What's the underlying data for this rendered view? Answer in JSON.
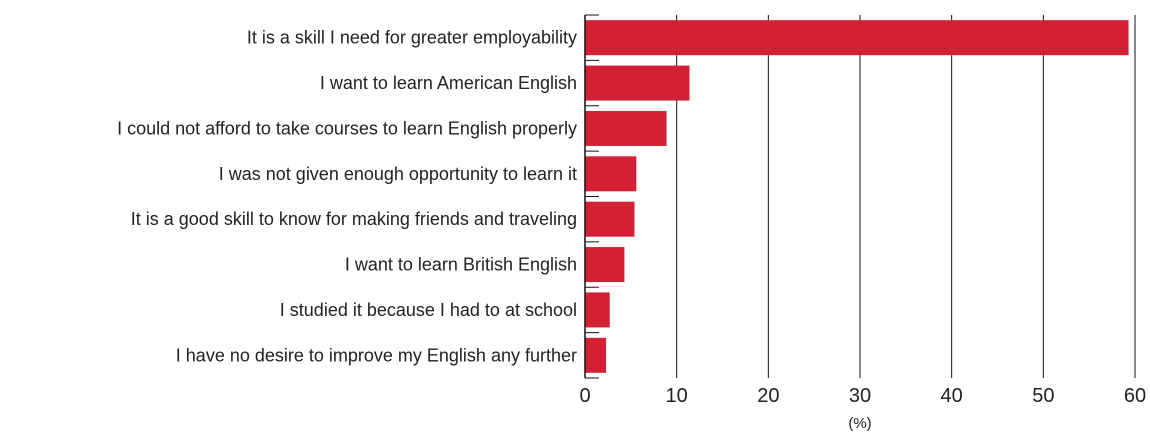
{
  "chart_data": {
    "type": "bar",
    "orientation": "horizontal",
    "categories": [
      "It is a skill I need for greater employability",
      "I want to learn American English",
      "I could not afford to take courses to learn English properly",
      "I was not given enough opportunity to learn it",
      "It is a good skill to know for making friends and traveling",
      "I want to learn British English",
      "I studied it because I had to at school",
      "I have no desire to improve my English any further"
    ],
    "values": [
      59.3,
      11.4,
      8.9,
      5.6,
      5.4,
      4.3,
      2.7,
      2.3
    ],
    "xlabel": "(%)",
    "ylabel": "",
    "xlim": [
      0,
      60
    ],
    "xticks": [
      0,
      10,
      20,
      30,
      40,
      50,
      60
    ],
    "grid": true,
    "bar_color": "#d42035",
    "grid_color": "#111111"
  }
}
